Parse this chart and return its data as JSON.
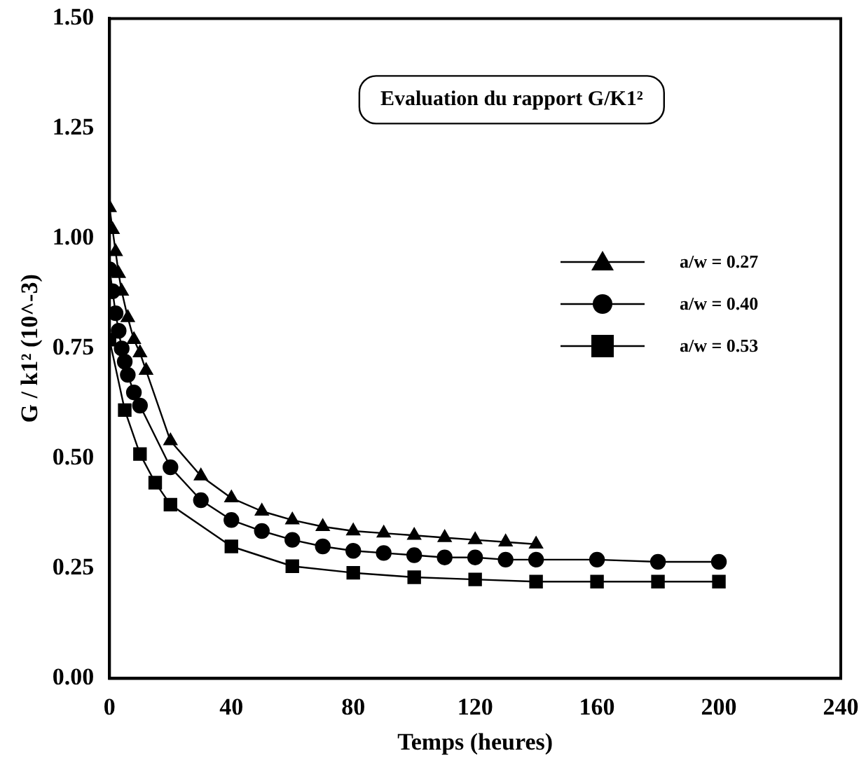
{
  "chart_data": {
    "type": "line",
    "title": "Evaluation du rapport G/K1²",
    "xlabel": "Temps (heures)",
    "ylabel": "G / k1² (10^-3)",
    "xlim": [
      0,
      240
    ],
    "xticks": [
      0,
      40,
      80,
      120,
      160,
      200,
      240
    ],
    "ylim": [
      0,
      1.5
    ],
    "yticks": [
      {
        "value": 0,
        "label": "0.00"
      },
      {
        "value": 0.25,
        "label": "0.25"
      },
      {
        "value": 0.5,
        "label": "0.50"
      },
      {
        "value": 0.75,
        "label": "0.75"
      },
      {
        "value": 1,
        "label": "1.00"
      },
      {
        "value": 1.25,
        "label": "1.25"
      },
      {
        "value": 1.5,
        "label": "1.50"
      }
    ],
    "grid": false,
    "legend": "right",
    "line_style": "solid",
    "series": [
      {
        "name": "a/w = 0.27",
        "color": "#000000",
        "marker": "triangle",
        "x": [
          0,
          1,
          2,
          3,
          4,
          6,
          8,
          10,
          12,
          20,
          30,
          40,
          50,
          60,
          70,
          80,
          90,
          100,
          110,
          120,
          130,
          140
        ],
        "values": [
          1.07,
          1.02,
          0.97,
          0.92,
          0.88,
          0.82,
          0.77,
          0.74,
          0.7,
          0.54,
          0.46,
          0.41,
          0.38,
          0.36,
          0.345,
          0.335,
          0.33,
          0.325,
          0.32,
          0.315,
          0.31,
          0.305
        ]
      },
      {
        "name": "a/w = 0.40",
        "color": "#000000",
        "marker": "circle",
        "x": [
          0,
          1,
          2,
          3,
          4,
          5,
          6,
          8,
          10,
          20,
          30,
          40,
          50,
          60,
          70,
          80,
          90,
          100,
          110,
          120,
          130,
          140,
          160,
          180,
          200
        ],
        "values": [
          0.93,
          0.88,
          0.83,
          0.79,
          0.75,
          0.72,
          0.69,
          0.65,
          0.62,
          0.48,
          0.405,
          0.36,
          0.335,
          0.315,
          0.3,
          0.29,
          0.285,
          0.28,
          0.275,
          0.275,
          0.27,
          0.27,
          0.27,
          0.265,
          0.265
        ]
      },
      {
        "name": "a/w = 0.53",
        "color": "#000000",
        "marker": "square",
        "x": [
          0,
          5,
          10,
          15,
          20,
          40,
          60,
          80,
          100,
          120,
          140,
          160,
          180,
          200
        ],
        "values": [
          0.77,
          0.61,
          0.51,
          0.445,
          0.395,
          0.3,
          0.255,
          0.24,
          0.23,
          0.225,
          0.22,
          0.22,
          0.22,
          0.22
        ]
      }
    ]
  }
}
